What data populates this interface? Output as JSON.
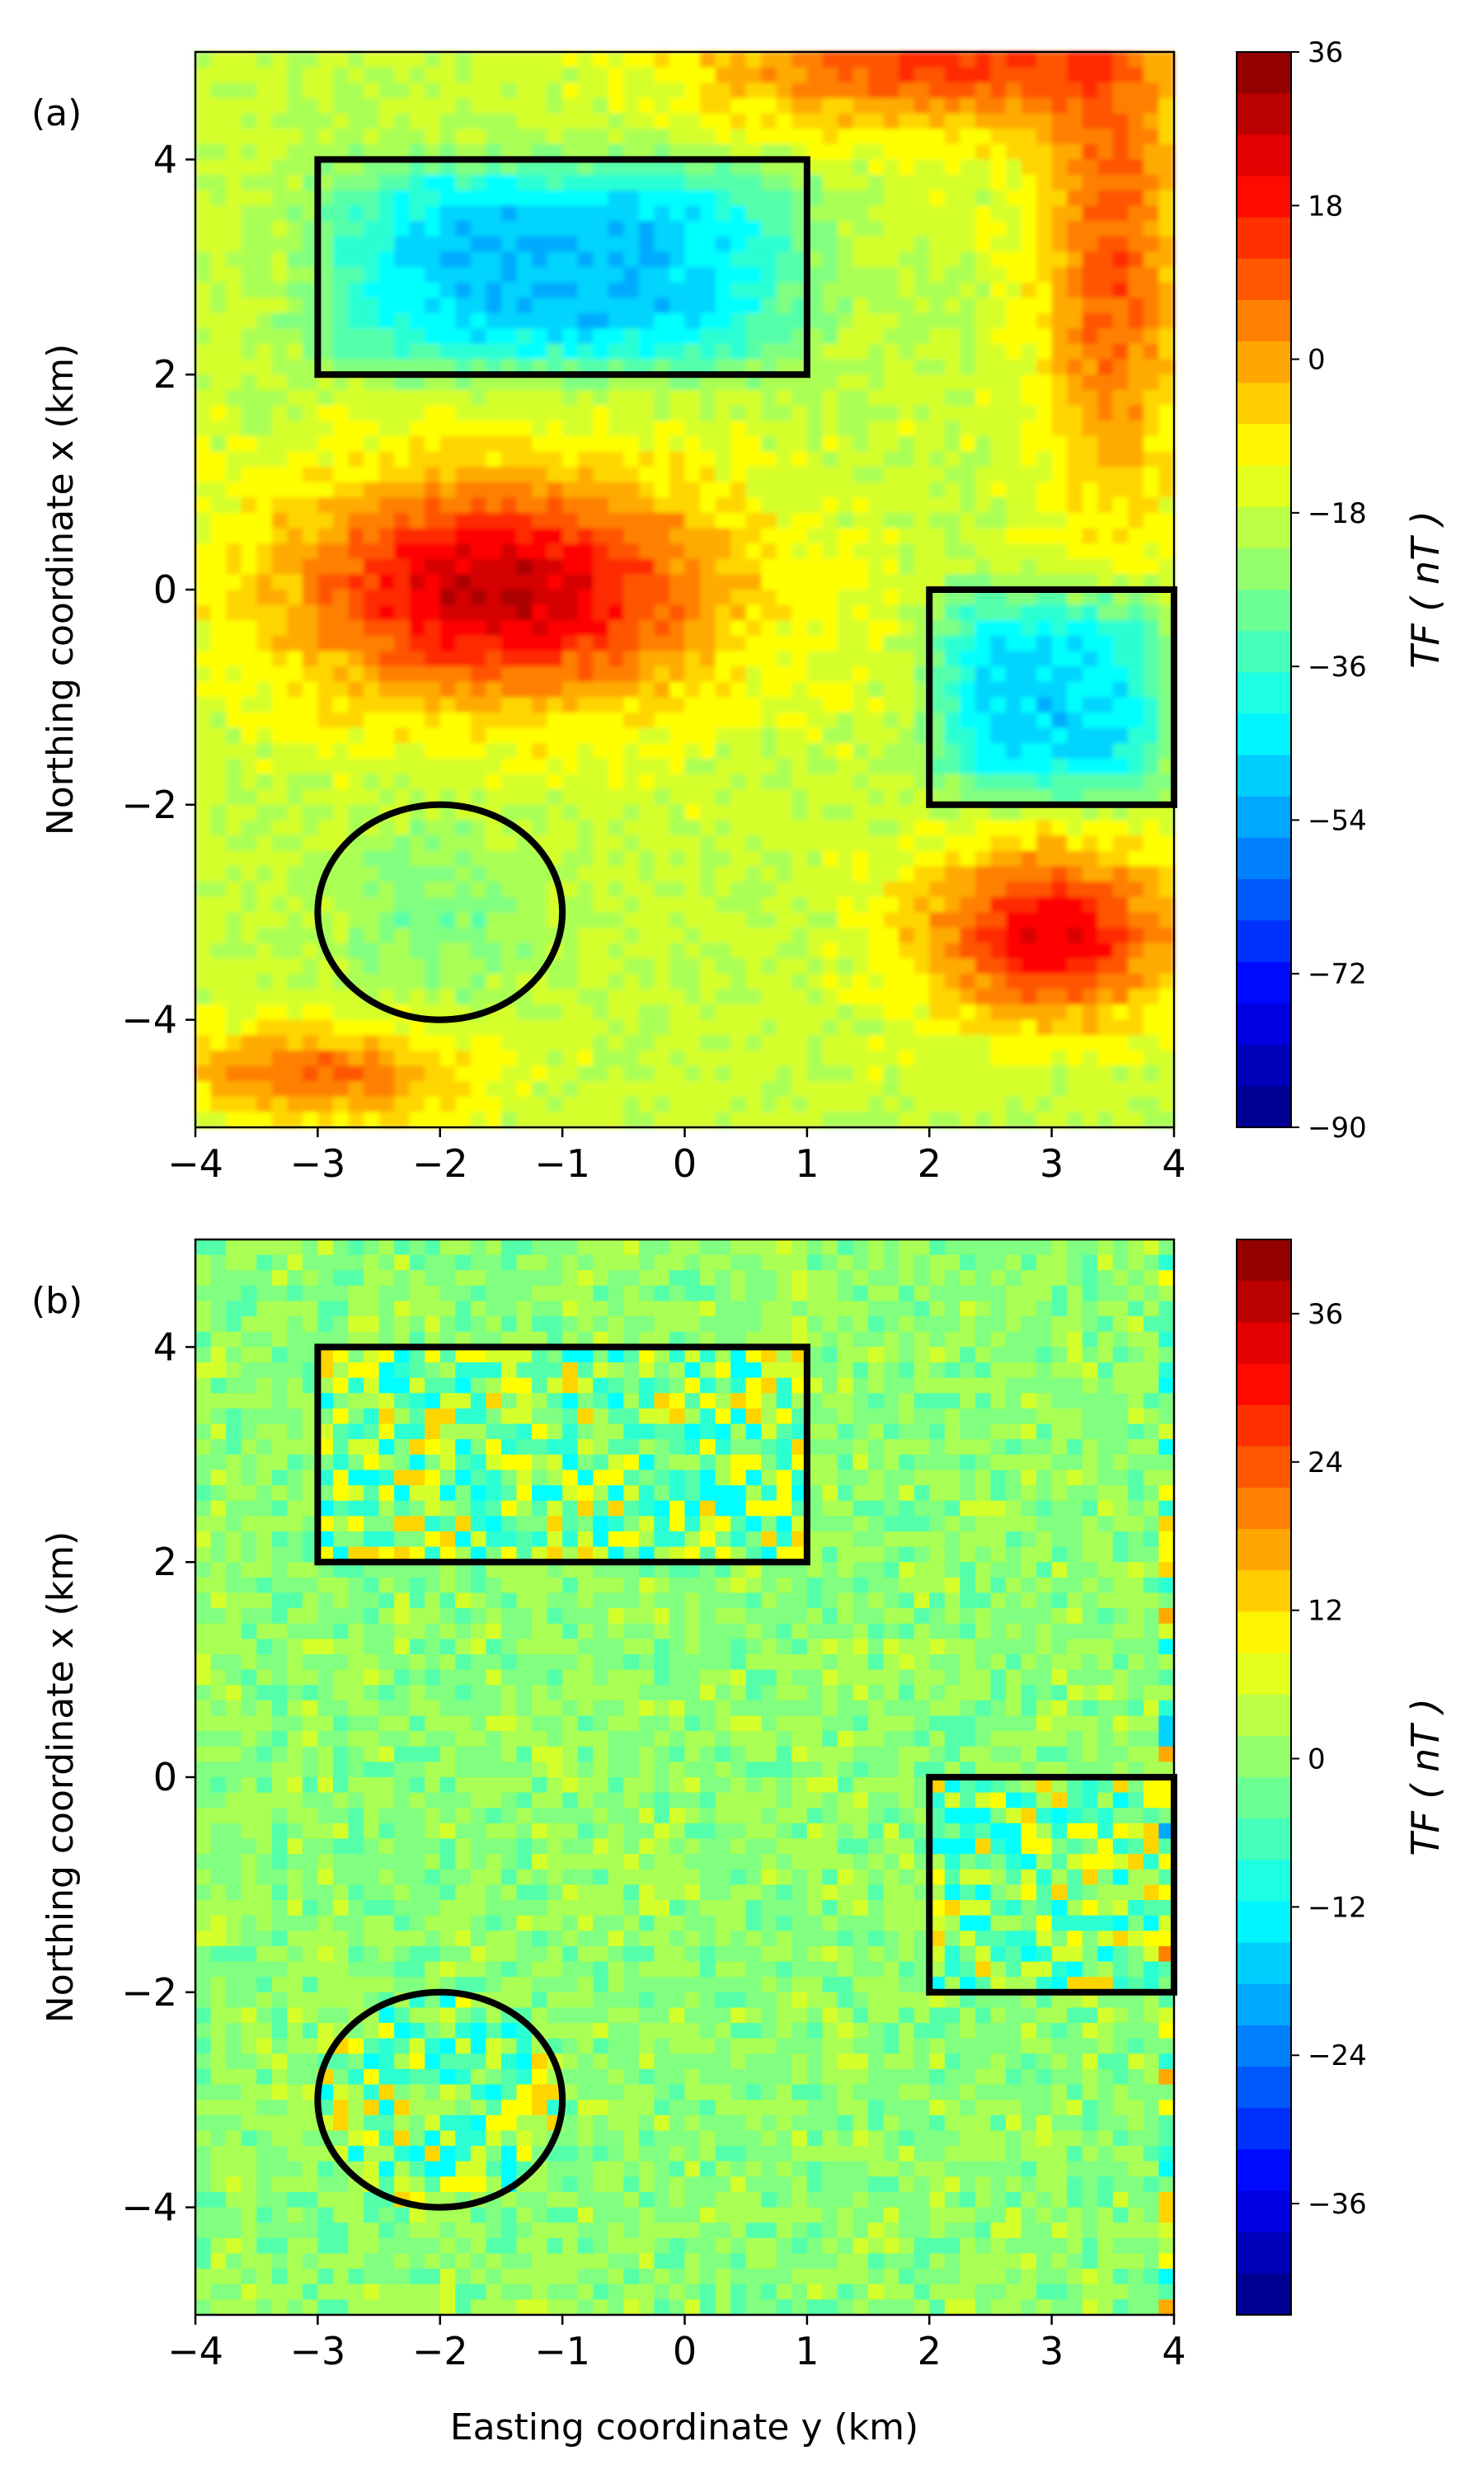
{
  "chart_data": [
    {
      "type": "heatmap",
      "panel_label": "(a)",
      "xlabel": "",
      "ylabel": "Northing coordinate x (km)",
      "xlim": [
        -4,
        4
      ],
      "ylim": [
        -5,
        5
      ],
      "x_ticks": [
        "−4",
        "−3",
        "−2",
        "−1",
        "0",
        "1",
        "2",
        "3",
        "4"
      ],
      "y_ticks": [
        "−4",
        "−2",
        "0",
        "2",
        "4"
      ],
      "colorbar": {
        "label": "TF ( nT )",
        "range": [
          -90,
          36
        ],
        "ticks": [
          "36",
          "18",
          "0",
          "−18",
          "−36",
          "−54",
          "−72",
          "−90"
        ],
        "colormap": "jet"
      },
      "features": [
        {
          "shape": "rect",
          "x_range": [
            -3,
            1
          ],
          "y_range": [
            2,
            4
          ],
          "value": -50
        },
        {
          "shape": "rect",
          "x_range": [
            2,
            4
          ],
          "y_range": [
            -2,
            0
          ],
          "value": -48
        },
        {
          "shape": "ellipse",
          "center": [
            -2,
            -3
          ],
          "radius": [
            1,
            1
          ],
          "value": -28
        },
        {
          "shape": "blob",
          "center": [
            -1.5,
            0
          ],
          "radius": [
            2.0,
            1.2
          ],
          "value": 28
        },
        {
          "shape": "blob",
          "center": [
            2.0,
            5
          ],
          "radius": [
            2.0,
            0.8
          ],
          "value": 15
        },
        {
          "shape": "blob",
          "center": [
            3.5,
            3
          ],
          "radius": [
            0.7,
            2.5
          ],
          "value": 10
        },
        {
          "shape": "blob",
          "center": [
            3.0,
            -3.2
          ],
          "radius": [
            1.2,
            0.9
          ],
          "value": 22
        },
        {
          "shape": "blob",
          "center": [
            -3.0,
            -4.5
          ],
          "radius": [
            1.3,
            0.5
          ],
          "value": 8
        }
      ],
      "background_value": -18
    },
    {
      "type": "heatmap",
      "panel_label": "(b)",
      "xlabel": "Easting coordinate y (km)",
      "ylabel": "Northing coordinate x (km)",
      "xlim": [
        -4,
        4
      ],
      "ylim": [
        -5,
        5
      ],
      "x_ticks": [
        "−4",
        "−3",
        "−2",
        "−1",
        "0",
        "1",
        "2",
        "3",
        "4"
      ],
      "y_ticks": [
        "−4",
        "−2",
        "0",
        "2",
        "4"
      ],
      "colorbar": {
        "label": "TF ( nT )",
        "range": [
          -45,
          42
        ],
        "ticks": [
          "36",
          "24",
          "12",
          "0",
          "−12",
          "−24",
          "−36"
        ],
        "colormap": "jet"
      },
      "features": [
        {
          "shape": "rect",
          "x_range": [
            -3,
            1
          ],
          "y_range": [
            2,
            4
          ],
          "value": 0
        },
        {
          "shape": "rect",
          "x_range": [
            2,
            4
          ],
          "y_range": [
            -2,
            0
          ],
          "value": 0
        },
        {
          "shape": "ellipse",
          "center": [
            -2,
            -3
          ],
          "radius": [
            1,
            1
          ],
          "value": 0
        }
      ],
      "background_value": 0
    }
  ]
}
